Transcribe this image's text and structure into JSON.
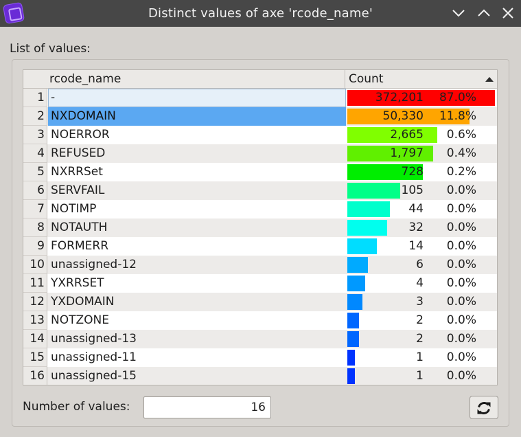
{
  "window": {
    "title": "Distinct values of axe 'rcode_name'",
    "icons": [
      "app-logo-icon",
      "minimize-icon",
      "maximize-icon",
      "close-icon"
    ]
  },
  "list_label": "List of values:",
  "table": {
    "columns": [
      "rcode_name",
      "Count"
    ],
    "sort": "descending by Count",
    "rows": [
      {
        "num": "1",
        "name": "-",
        "count": "372,201",
        "pct": "87.0%",
        "fraction": 1.0,
        "color": "#ff0000",
        "state": "current"
      },
      {
        "num": "2",
        "name": "NXDOMAIN",
        "count": "50,330",
        "pct": "11.8%",
        "fraction": 0.83,
        "color": "#ffa500",
        "state": "selected"
      },
      {
        "num": "3",
        "name": "NOERROR",
        "count": "2,665",
        "pct": "0.6%",
        "fraction": 0.61,
        "color": "#80ff00",
        "state": ""
      },
      {
        "num": "4",
        "name": "REFUSED",
        "count": "1,797",
        "pct": "0.4%",
        "fraction": 0.58,
        "color": "#60f000",
        "state": ""
      },
      {
        "num": "5",
        "name": "NXRRSet",
        "count": "728",
        "pct": "0.2%",
        "fraction": 0.51,
        "color": "#00ee00",
        "state": ""
      },
      {
        "num": "6",
        "name": "SERVFAIL",
        "count": "105",
        "pct": "0.0%",
        "fraction": 0.36,
        "color": "#00ff88",
        "state": ""
      },
      {
        "num": "7",
        "name": "NOTIMP",
        "count": "44",
        "pct": "0.0%",
        "fraction": 0.29,
        "color": "#00ffcc",
        "state": ""
      },
      {
        "num": "8",
        "name": "NOTAUTH",
        "count": "32",
        "pct": "0.0%",
        "fraction": 0.27,
        "color": "#00ffee",
        "state": ""
      },
      {
        "num": "9",
        "name": "FORMERR",
        "count": "14",
        "pct": "0.0%",
        "fraction": 0.2,
        "color": "#00ddff",
        "state": ""
      },
      {
        "num": "10",
        "name": "unassigned-12",
        "count": "6",
        "pct": "0.0%",
        "fraction": 0.14,
        "color": "#00aaff",
        "state": ""
      },
      {
        "num": "11",
        "name": "YXRRSET",
        "count": "4",
        "pct": "0.0%",
        "fraction": 0.12,
        "color": "#0099ff",
        "state": ""
      },
      {
        "num": "12",
        "name": "YXDOMAIN",
        "count": "3",
        "pct": "0.0%",
        "fraction": 0.1,
        "color": "#0088ff",
        "state": ""
      },
      {
        "num": "13",
        "name": "NOTZONE",
        "count": "2",
        "pct": "0.0%",
        "fraction": 0.08,
        "color": "#0066ff",
        "state": ""
      },
      {
        "num": "14",
        "name": "unassigned-13",
        "count": "2",
        "pct": "0.0%",
        "fraction": 0.08,
        "color": "#0066ff",
        "state": ""
      },
      {
        "num": "15",
        "name": "unassigned-11",
        "count": "1",
        "pct": "0.0%",
        "fraction": 0.05,
        "color": "#0033ff",
        "state": ""
      },
      {
        "num": "16",
        "name": "unassigned-15",
        "count": "1",
        "pct": "0.0%",
        "fraction": 0.05,
        "color": "#0033ff",
        "state": ""
      }
    ]
  },
  "footer": {
    "number_label": "Number of values:",
    "number_value": "16",
    "refresh_icon": "refresh-icon"
  }
}
